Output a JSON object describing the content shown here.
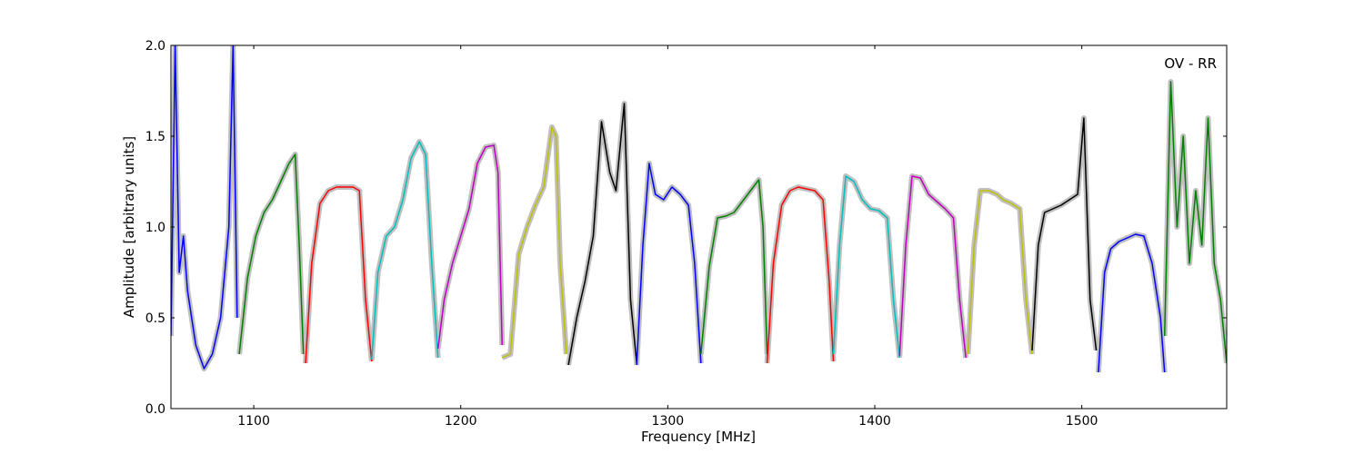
{
  "chart_data": {
    "type": "line",
    "title": "",
    "xlabel": "Frequency [MHz]",
    "ylabel": "Amplitude [arbitrary units]",
    "annotation": "OV - RR",
    "xlim": [
      1060,
      1570
    ],
    "ylim": [
      0.0,
      2.0
    ],
    "x_ticks": [
      1100,
      1200,
      1300,
      1400,
      1500
    ],
    "y_ticks": [
      0.0,
      0.5,
      1.0,
      1.5,
      2.0
    ],
    "grid": false,
    "legend": "none",
    "reference_band_color": "#c0c0c0",
    "band_colors": [
      "#0000ff",
      "#008000",
      "#ff0000",
      "#00bfbf",
      "#bf00bf",
      "#bfbf00",
      "#000000"
    ],
    "bands": [
      {
        "color": "#0000ff",
        "x": [
          1060,
          1062,
          1064,
          1066,
          1068,
          1072,
          1076,
          1080,
          1084,
          1088,
          1090,
          1092
        ],
        "y": [
          0.4,
          2.0,
          0.75,
          0.95,
          0.65,
          0.35,
          0.22,
          0.3,
          0.5,
          1.0,
          2.0,
          0.5
        ]
      },
      {
        "color": "#008000",
        "x": [
          1093,
          1097,
          1101,
          1105,
          1109,
          1113,
          1117,
          1120,
          1122,
          1124
        ],
        "y": [
          0.3,
          0.72,
          0.95,
          1.08,
          1.15,
          1.25,
          1.35,
          1.4,
          0.9,
          0.3
        ]
      },
      {
        "color": "#ff0000",
        "x": [
          1125,
          1128,
          1132,
          1136,
          1140,
          1144,
          1148,
          1151,
          1154,
          1157
        ],
        "y": [
          0.25,
          0.8,
          1.13,
          1.2,
          1.22,
          1.22,
          1.22,
          1.2,
          0.6,
          0.26
        ]
      },
      {
        "color": "#00bfbf",
        "x": [
          1157,
          1160,
          1164,
          1168,
          1172,
          1176,
          1180,
          1183,
          1186,
          1189
        ],
        "y": [
          0.27,
          0.75,
          0.95,
          1.0,
          1.15,
          1.38,
          1.47,
          1.4,
          0.8,
          0.28
        ]
      },
      {
        "color": "#bf00bf",
        "x": [
          1189,
          1192,
          1196,
          1200,
          1204,
          1208,
          1212,
          1216,
          1218,
          1220
        ],
        "y": [
          0.33,
          0.6,
          0.8,
          0.95,
          1.1,
          1.35,
          1.44,
          1.45,
          1.3,
          0.35
        ]
      },
      {
        "color": "#bfbf00",
        "x": [
          1220,
          1224,
          1228,
          1232,
          1236,
          1240,
          1244,
          1246,
          1248,
          1251
        ],
        "y": [
          0.28,
          0.3,
          0.85,
          1.0,
          1.12,
          1.22,
          1.55,
          1.5,
          0.8,
          0.3
        ]
      },
      {
        "color": "#000000",
        "x": [
          1252,
          1256,
          1260,
          1264,
          1268,
          1272,
          1275,
          1279,
          1282,
          1285
        ],
        "y": [
          0.24,
          0.5,
          0.7,
          0.95,
          1.58,
          1.3,
          1.2,
          1.68,
          0.6,
          0.25
        ]
      },
      {
        "color": "#0000ff",
        "x": [
          1285,
          1288,
          1291,
          1294,
          1298,
          1302,
          1306,
          1310,
          1313,
          1316
        ],
        "y": [
          0.24,
          0.9,
          1.35,
          1.18,
          1.15,
          1.22,
          1.18,
          1.12,
          0.8,
          0.25
        ]
      },
      {
        "color": "#008000",
        "x": [
          1316,
          1320,
          1324,
          1328,
          1332,
          1336,
          1340,
          1344,
          1346,
          1348
        ],
        "y": [
          0.3,
          0.78,
          1.05,
          1.06,
          1.08,
          1.14,
          1.2,
          1.26,
          1.0,
          0.3
        ]
      },
      {
        "color": "#ff0000",
        "x": [
          1348,
          1351,
          1355,
          1359,
          1363,
          1367,
          1371,
          1375,
          1378,
          1380
        ],
        "y": [
          0.25,
          0.8,
          1.12,
          1.2,
          1.22,
          1.21,
          1.2,
          1.15,
          0.7,
          0.26
        ]
      },
      {
        "color": "#00bfbf",
        "x": [
          1380,
          1383,
          1386,
          1390,
          1394,
          1398,
          1402,
          1406,
          1409,
          1412
        ],
        "y": [
          0.3,
          0.9,
          1.28,
          1.25,
          1.15,
          1.1,
          1.09,
          1.05,
          0.6,
          0.28
        ]
      },
      {
        "color": "#bf00bf",
        "x": [
          1412,
          1415,
          1418,
          1422,
          1426,
          1430,
          1434,
          1438,
          1441,
          1444
        ],
        "y": [
          0.29,
          0.9,
          1.28,
          1.27,
          1.18,
          1.14,
          1.1,
          1.05,
          0.6,
          0.28
        ]
      },
      {
        "color": "#bfbf00",
        "x": [
          1445,
          1448,
          1451,
          1455,
          1459,
          1462,
          1466,
          1470,
          1473,
          1476
        ],
        "y": [
          0.3,
          0.9,
          1.2,
          1.2,
          1.18,
          1.15,
          1.13,
          1.1,
          0.6,
          0.3
        ]
      },
      {
        "color": "#000000",
        "x": [
          1476,
          1479,
          1482,
          1486,
          1490,
          1494,
          1498,
          1501,
          1504,
          1507
        ],
        "y": [
          0.32,
          0.9,
          1.08,
          1.1,
          1.12,
          1.15,
          1.18,
          1.6,
          0.6,
          0.32
        ]
      },
      {
        "color": "#0000ff",
        "x": [
          1508,
          1511,
          1514,
          1518,
          1522,
          1526,
          1530,
          1534,
          1538,
          1540
        ],
        "y": [
          0.2,
          0.75,
          0.88,
          0.92,
          0.94,
          0.96,
          0.95,
          0.8,
          0.5,
          0.2
        ]
      },
      {
        "color": "#008000",
        "x": [
          1540,
          1543,
          1546,
          1549,
          1552,
          1555,
          1558,
          1561,
          1564,
          1567,
          1570
        ],
        "y": [
          0.4,
          1.8,
          1.0,
          1.5,
          0.8,
          1.2,
          0.9,
          1.6,
          0.8,
          0.6,
          0.25
        ]
      }
    ]
  }
}
